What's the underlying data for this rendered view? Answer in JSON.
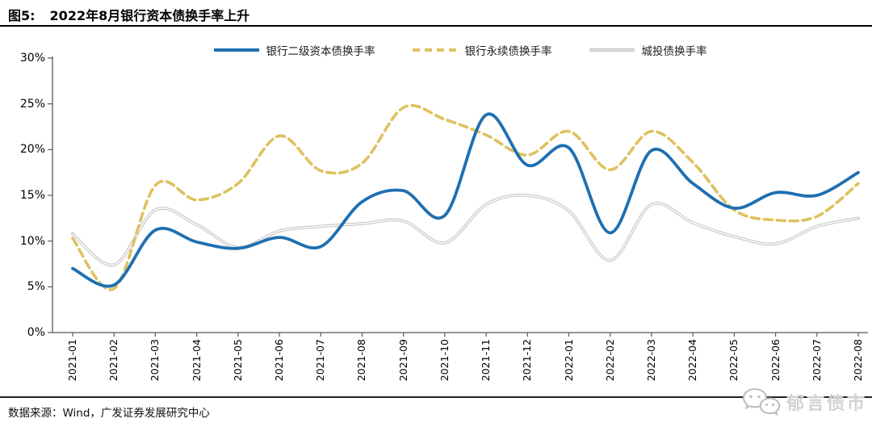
{
  "figure": {
    "label": "图5:",
    "title": "2022年8月银行资本债换手率上升",
    "source": "数据来源：Wind，广发证券发展研究中心",
    "watermark": "郁言债市"
  },
  "colors": {
    "series_blue": "#1F6FB0",
    "series_yellow": "#DEC260",
    "series_gray": "#C2C2C2",
    "axis": "#595959",
    "title_rule": "#000000",
    "source_rule": "#222222",
    "watermark_gray": "#c4c4c4"
  },
  "icons": {
    "watermark_icon": "wechat-bubbles-icon"
  },
  "chart_data": {
    "type": "line",
    "title": "2022年8月银行资本债换手率上升",
    "categories": [
      "2021-01",
      "2021-02",
      "2021-03",
      "2021-04",
      "2021-05",
      "2021-06",
      "2021-07",
      "2021-08",
      "2021-09",
      "2021-10",
      "2021-11",
      "2021-12",
      "2022-01",
      "2022-02",
      "2022-03",
      "2022-04",
      "2022-05",
      "2022-06",
      "2022-07",
      "2022-08"
    ],
    "series": [
      {
        "name": "银行二级资本债换手率",
        "color": "#1F6FB0",
        "style": "solid",
        "values": [
          7.0,
          5.2,
          11.2,
          9.9,
          9.2,
          10.4,
          9.4,
          14.3,
          15.5,
          12.8,
          23.8,
          18.3,
          20.2,
          10.9,
          19.9,
          16.3,
          13.6,
          15.3,
          15.0,
          17.5
        ]
      },
      {
        "name": "银行永续债换手率",
        "color": "#DEC260",
        "style": "dashed",
        "values": [
          10.3,
          4.8,
          16.1,
          14.5,
          16.3,
          21.5,
          17.7,
          18.5,
          24.6,
          23.3,
          21.6,
          19.4,
          22.0,
          17.8,
          22.0,
          18.6,
          13.4,
          12.3,
          12.7,
          16.3
        ]
      },
      {
        "name": "城投债换手率",
        "color": "#C2C2C2",
        "style": "double",
        "values": [
          10.8,
          7.4,
          13.4,
          11.8,
          9.3,
          11.1,
          11.6,
          11.9,
          12.2,
          9.8,
          14.0,
          15.0,
          13.3,
          7.9,
          14.0,
          12.0,
          10.5,
          9.7,
          11.6,
          12.5
        ]
      }
    ],
    "ylim": [
      0,
      30
    ],
    "y_ticks": [
      "0%",
      "5%",
      "10%",
      "15%",
      "20%",
      "25%",
      "30%"
    ],
    "xlabel": "",
    "ylabel": "",
    "legend_position": "top-center",
    "grid": false
  }
}
